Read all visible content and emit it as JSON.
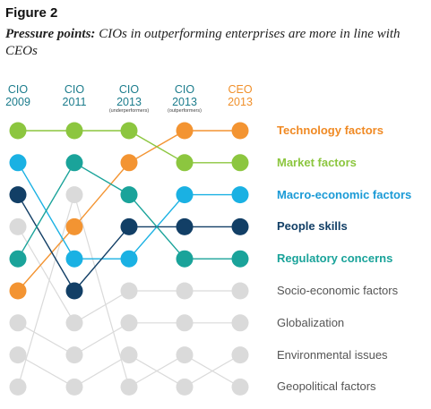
{
  "figure_label": "Figure 2",
  "title_lead": "Pressure points:",
  "title_rest": " CIOs in outperforming enterprises are more in line with CEOs",
  "columns": [
    {
      "line1": "CIO",
      "line2": "2009",
      "sub": "",
      "color": "#1b7c8c"
    },
    {
      "line1": "CIO",
      "line2": "2011",
      "sub": "",
      "color": "#1b7c8c"
    },
    {
      "line1": "CIO",
      "line2": "2013",
      "sub": "(underperformers)",
      "color": "#1b7c8c"
    },
    {
      "line1": "CIO",
      "line2": "2013",
      "sub": "(outperformers)",
      "color": "#1b7c8c"
    },
    {
      "line1": "CEO",
      "line2": "2013",
      "sub": "",
      "color": "#f0902b"
    }
  ],
  "factors": [
    {
      "name": "Technology factors",
      "color": "#f39432",
      "text_color": "#f08a24",
      "bold": true,
      "ranks": [
        6,
        4,
        2,
        1,
        1
      ]
    },
    {
      "name": "Market factors",
      "color": "#8cc63f",
      "text_color": "#8cc63f",
      "bold": true,
      "ranks": [
        1,
        1,
        1,
        2,
        2
      ]
    },
    {
      "name": "Macro-economic factors",
      "color": "#1ab1e3",
      "text_color": "#1a9ad6",
      "bold": true,
      "ranks": [
        2,
        5,
        5,
        3,
        3
      ]
    },
    {
      "name": "People skills",
      "color": "#123f66",
      "text_color": "#123f66",
      "bold": true,
      "ranks": [
        3,
        6,
        4,
        4,
        4
      ]
    },
    {
      "name": "Regulatory concerns",
      "color": "#1aa39a",
      "text_color": "#1aa39a",
      "bold": true,
      "ranks": [
        5,
        2,
        3,
        5,
        5
      ]
    },
    {
      "name": "Socio-economic factors",
      "color": "#dadada",
      "text_color": "#555555",
      "bold": false,
      "ranks": [
        4,
        7,
        6,
        6,
        6
      ]
    },
    {
      "name": "Globalization",
      "color": "#dadada",
      "text_color": "#555555",
      "bold": false,
      "ranks": [
        7,
        8,
        7,
        7,
        7
      ]
    },
    {
      "name": "Environmental issues",
      "color": "#dadada",
      "text_color": "#555555",
      "bold": false,
      "ranks": [
        8,
        9,
        8,
        9,
        8
      ]
    },
    {
      "name": "Geopolitical factors",
      "color": "#dadada",
      "text_color": "#555555",
      "bold": false,
      "ranks": [
        9,
        3,
        9,
        8,
        9
      ]
    }
  ]
}
